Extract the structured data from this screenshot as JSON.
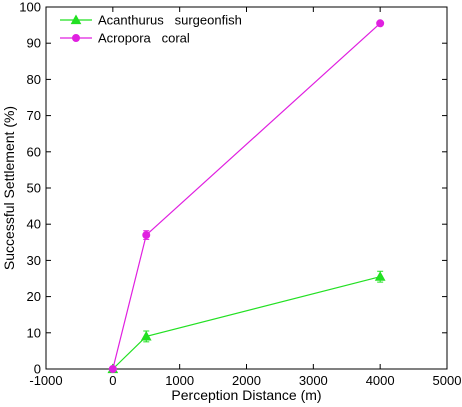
{
  "chart_data": {
    "type": "line",
    "xlabel": "Perception Distance (m)",
    "ylabel": "Successful Settlement (%)",
    "xlim": [
      -1000,
      5000
    ],
    "ylim": [
      0,
      100
    ],
    "xticks": [
      -1000,
      0,
      1000,
      2000,
      3000,
      4000,
      5000
    ],
    "yticks": [
      0,
      10,
      20,
      30,
      40,
      50,
      60,
      70,
      80,
      90,
      100
    ],
    "grid": false,
    "legend_position": "top-left",
    "series": [
      {
        "name": "Acanthurus   surgeonfish",
        "color": "#22e022",
        "marker": "triangle",
        "x": [
          0,
          500,
          4000
        ],
        "y": [
          0,
          9,
          25.5
        ],
        "err": [
          0,
          1.5,
          1.5
        ]
      },
      {
        "name": "Acropora   coral",
        "color": "#e020e0",
        "marker": "circle",
        "x": [
          0,
          500,
          4000
        ],
        "y": [
          0,
          37,
          95.5
        ],
        "err": [
          0,
          1.2,
          0
        ]
      }
    ]
  }
}
